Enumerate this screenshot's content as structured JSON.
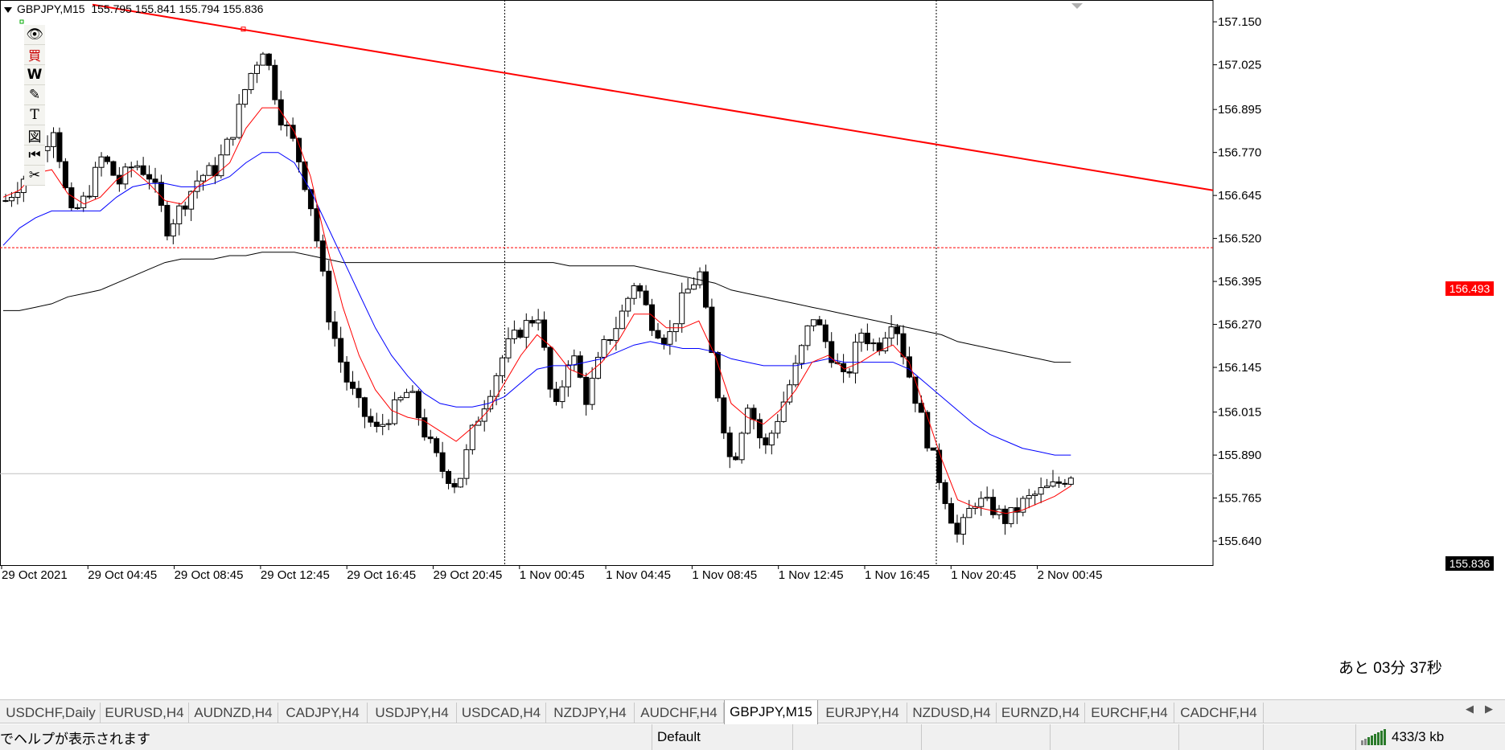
{
  "header": {
    "symbol": "GBPJPY,M15",
    "ohlc": "155.795 155.841 155.794 155.836"
  },
  "toolbar": {
    "items": [
      {
        "name": "eye-icon",
        "glyph": "👁"
      },
      {
        "name": "buy-kanji-icon",
        "glyph": "買"
      },
      {
        "name": "w-icon",
        "glyph": "W"
      },
      {
        "name": "pencil-icon",
        "glyph": "✎"
      },
      {
        "name": "text-icon",
        "glyph": "T"
      },
      {
        "name": "zu-kanji-icon",
        "glyph": "図"
      },
      {
        "name": "rewind-icon",
        "glyph": "⏮"
      },
      {
        "name": "scissors-icon",
        "glyph": "✂"
      }
    ]
  },
  "colors": {
    "candle_bear": "#000000",
    "candle_bull": "#ffffff",
    "ma_fast": "#ff0000",
    "ma_mid": "#0000ff",
    "ma_slow": "#000000",
    "trendline": "#ff0000",
    "hline": "#ff0000",
    "cur_line": "#c0c0c0",
    "vline": "#000000"
  },
  "chart_data": {
    "type": "candlestick",
    "symbol": "GBPJPY",
    "timeframe": "M15",
    "ylim": [
      155.57,
      157.19
    ],
    "price_ticks": [
      "157.150",
      "157.025",
      "156.895",
      "156.770",
      "156.645",
      "156.520",
      "156.395",
      "156.270",
      "156.145",
      "156.015",
      "155.890",
      "155.765",
      "155.640"
    ],
    "time_labels": [
      "29 Oct 2021",
      "29 Oct 04:45",
      "29 Oct 08:45",
      "29 Oct 12:45",
      "29 Oct 16:45",
      "29 Oct 20:45",
      "1 Nov 00:45",
      "1 Nov 04:45",
      "1 Nov 08:45",
      "1 Nov 12:45",
      "1 Nov 16:45",
      "1 Nov 20:45",
      "2 Nov 00:45"
    ],
    "horizontal_line": 156.493,
    "current_price": 155.836,
    "trendline": {
      "start_price": 157.2,
      "end_price": 156.66
    },
    "close_path": [
      156.63,
      156.69,
      156.75,
      156.85,
      156.58,
      156.64,
      156.76,
      156.68,
      156.74,
      156.7,
      156.55,
      156.62,
      156.7,
      156.72,
      156.82,
      156.98,
      157.08,
      156.88,
      156.78,
      156.6,
      156.3,
      156.12,
      156.02,
      155.96,
      156.02,
      156.08,
      155.95,
      155.85,
      155.8,
      155.97,
      156.08,
      156.2,
      156.26,
      156.3,
      156.0,
      156.2,
      156.05,
      156.2,
      156.28,
      156.4,
      156.28,
      156.22,
      156.35,
      156.42,
      156.1,
      155.85,
      156.05,
      155.9,
      156.02,
      156.15,
      156.3,
      156.2,
      156.1,
      156.25,
      156.2,
      156.3,
      156.12,
      155.95,
      155.8,
      155.65,
      155.76,
      155.74,
      155.7,
      155.75,
      155.78,
      155.8,
      155.836
    ],
    "ma_fast": [
      156.64,
      156.66,
      156.71,
      156.72,
      156.65,
      156.62,
      156.64,
      156.69,
      156.72,
      156.68,
      156.63,
      156.62,
      156.67,
      156.7,
      156.74,
      156.84,
      156.9,
      156.9,
      156.83,
      156.7,
      156.5,
      156.32,
      156.18,
      156.08,
      156.02,
      156.0,
      155.99,
      155.96,
      155.93,
      155.97,
      156.02,
      156.1,
      156.18,
      156.24,
      156.2,
      156.14,
      156.12,
      156.16,
      156.22,
      156.3,
      156.3,
      156.26,
      156.26,
      156.28,
      156.18,
      156.04,
      156.0,
      155.98,
      156.02,
      156.08,
      156.16,
      156.18,
      156.14,
      156.16,
      156.19,
      156.21,
      156.16,
      156.02,
      155.88,
      155.76,
      155.74,
      155.73,
      155.72,
      155.73,
      155.75,
      155.77,
      155.8
    ],
    "ma_mid": [
      156.5,
      156.55,
      156.58,
      156.6,
      156.6,
      156.6,
      156.6,
      156.64,
      156.67,
      156.68,
      156.68,
      156.67,
      156.67,
      156.68,
      156.7,
      156.74,
      156.77,
      156.77,
      156.74,
      156.66,
      156.56,
      156.46,
      156.36,
      156.26,
      156.18,
      156.12,
      156.07,
      156.04,
      156.03,
      156.03,
      156.04,
      156.06,
      156.1,
      156.14,
      156.15,
      156.15,
      156.16,
      156.17,
      156.19,
      156.21,
      156.22,
      156.21,
      156.2,
      156.2,
      156.19,
      156.17,
      156.16,
      156.15,
      156.15,
      156.15,
      156.16,
      156.17,
      156.16,
      156.16,
      156.16,
      156.16,
      156.14,
      156.1,
      156.06,
      156.02,
      155.98,
      155.95,
      155.93,
      155.91,
      155.9,
      155.89,
      155.89
    ],
    "ma_slow": [
      156.31,
      156.31,
      156.32,
      156.33,
      156.35,
      156.36,
      156.37,
      156.39,
      156.41,
      156.43,
      156.45,
      156.46,
      156.46,
      156.46,
      156.47,
      156.47,
      156.48,
      156.48,
      156.48,
      156.47,
      156.46,
      156.45,
      156.45,
      156.45,
      156.45,
      156.45,
      156.45,
      156.45,
      156.45,
      156.45,
      156.45,
      156.45,
      156.45,
      156.45,
      156.45,
      156.44,
      156.44,
      156.44,
      156.44,
      156.44,
      156.43,
      156.42,
      156.41,
      156.4,
      156.39,
      156.37,
      156.36,
      156.35,
      156.34,
      156.33,
      156.32,
      156.31,
      156.3,
      156.29,
      156.28,
      156.27,
      156.26,
      156.25,
      156.24,
      156.22,
      156.21,
      156.2,
      156.19,
      156.18,
      156.17,
      156.16,
      156.16
    ],
    "vlines_after_time_index": [
      5,
      10
    ]
  },
  "price_tags": {
    "hline": "156.493",
    "current": "155.836"
  },
  "countdown": "あと 03分 37秒",
  "tabs": {
    "items": [
      "USDCHF,Daily",
      "EURUSD,H4",
      "AUDNZD,H4",
      "CADJPY,H4",
      "USDJPY,H4",
      "USDCAD,H4",
      "NZDJPY,H4",
      "AUDCHF,H4",
      "GBPJPY,M15",
      "EURJPY,H4",
      "NZDUSD,H4",
      "EURNZD,H4",
      "EURCHF,H4",
      "CADCHF,H4"
    ],
    "active": "GBPJPY,M15"
  },
  "status": {
    "help": "でヘルプが表示されます",
    "profile": "Default",
    "traffic": "433/3 kb"
  }
}
